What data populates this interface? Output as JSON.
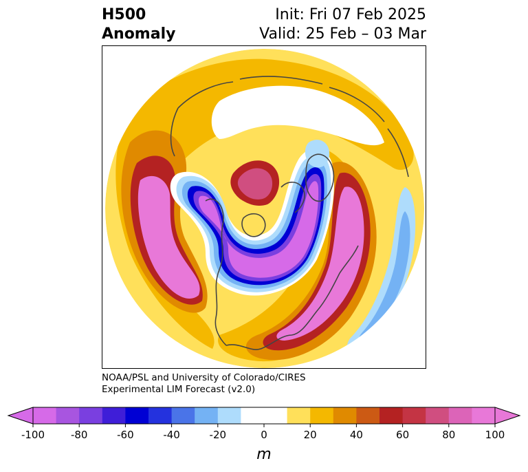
{
  "title": {
    "left_line1": "H500",
    "left_line2": "Anomaly",
    "init": "Init: Fri 07 Feb 2025",
    "valid": "Valid: 25 Feb – 03 Mar"
  },
  "credit": {
    "line1": "NOAA/PSL and University of Colorado/CIRES",
    "line2": "Experimental LIM Forecast (v2.0)"
  },
  "colorbar": {
    "unit": "m",
    "ticks": [
      "-100",
      "-80",
      "-60",
      "-40",
      "-20",
      "0",
      "20",
      "40",
      "60",
      "80",
      "100"
    ],
    "levels": [
      -100,
      -90,
      -80,
      -70,
      -60,
      -50,
      -40,
      -30,
      -20,
      -10,
      10,
      20,
      30,
      40,
      50,
      60,
      70,
      80,
      90,
      100
    ],
    "colors": [
      "#d66ae8",
      "#a855e0",
      "#7a3fe0",
      "#3f1ed8",
      "#0000d4",
      "#2432de",
      "#4a74e8",
      "#74b2f4",
      "#aedcfc",
      "#ffffff",
      "#ffe05a",
      "#f4b800",
      "#e08a00",
      "#cc5a14",
      "#b42222",
      "#c43444",
      "#d04e80",
      "#dc64b8",
      "#e878d8"
    ],
    "under_color": "#d66ae8",
    "over_color": "#e878d8"
  },
  "map": {
    "projection": "north polar stereographic",
    "colors": {
      "neg_light": "#aedcfc",
      "neg_mid": "#74b2f4",
      "neg_blue": "#2432de",
      "neg_deep": "#0000d4",
      "neg_purple": "#7a3fe0",
      "neg_core": "#d66ae8",
      "pos_yellow": "#ffe05a",
      "pos_gold": "#f4b800",
      "pos_orange": "#e08a00",
      "pos_red": "#b42222",
      "pos_rose": "#d04e80",
      "pos_core": "#e878d8",
      "coast": "#444444"
    }
  }
}
